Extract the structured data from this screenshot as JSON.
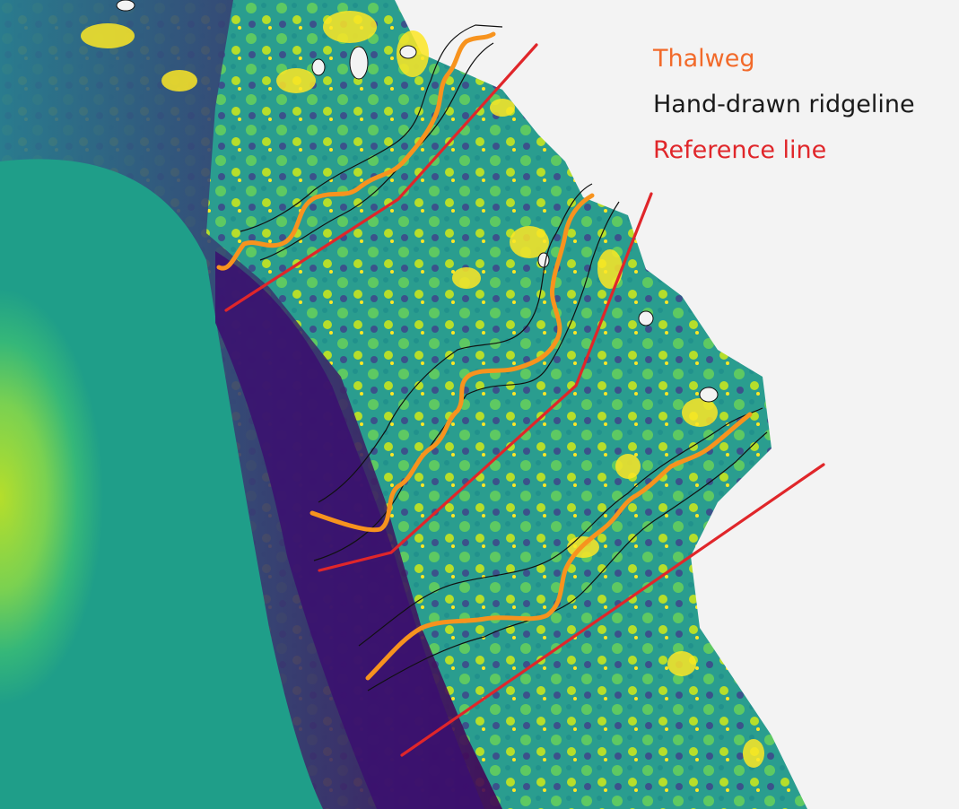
{
  "legend": {
    "items": [
      {
        "label": "Thalweg",
        "color": "#f26a2a"
      },
      {
        "label": "Hand-drawn ridgeline",
        "color": "#1a1a1a"
      },
      {
        "label": "Reference line",
        "color": "#e0262a"
      }
    ]
  },
  "colors": {
    "background": "#f3f3f3",
    "colormap": [
      "#440154",
      "#3b528b",
      "#21918c",
      "#5ec962",
      "#fde725"
    ],
    "thalweg": "#f7931e",
    "ridgeline": "#111111",
    "reference_line": "#e0262a"
  },
  "map": {
    "type": "bathymetry colormap",
    "overlay_lines": [
      "thalweg",
      "hand-drawn ridgeline",
      "reference line"
    ],
    "channel_count": 3
  }
}
